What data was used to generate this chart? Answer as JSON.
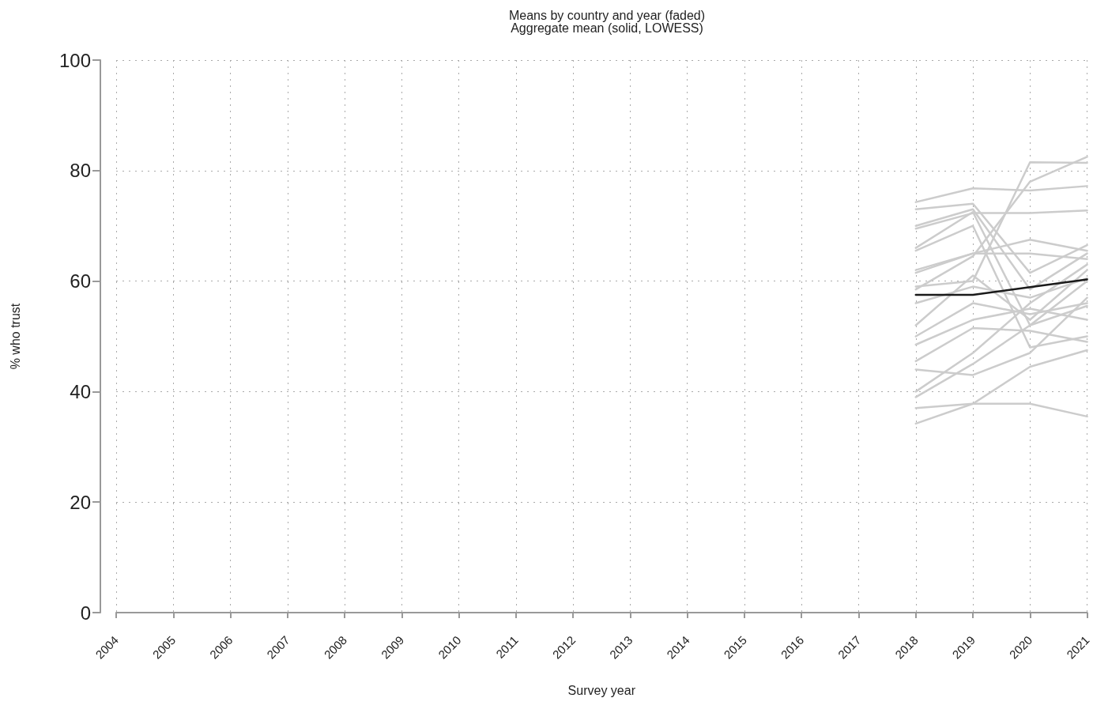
{
  "chart_data": {
    "type": "line",
    "title": "Means by country and year (faded)",
    "subtitle": "Aggregate mean (solid, LOWESS)",
    "xlabel": "Survey year",
    "ylabel": "% who trust",
    "x": [
      2018,
      2019,
      2020,
      2021
    ],
    "series": [
      {
        "color": "#cccccc",
        "values": [
          74.3,
          76.8,
          76.4,
          77.2
        ]
      },
      {
        "color": "#cccccc",
        "values": [
          73.0,
          74.0,
          61.5,
          66.5
        ]
      },
      {
        "color": "#cccccc",
        "values": [
          70.0,
          73.0,
          58.5,
          65.0
        ]
      },
      {
        "color": "#cccccc",
        "values": [
          69.5,
          72.3,
          72.3,
          72.8
        ]
      },
      {
        "color": "#cccccc",
        "values": [
          66.0,
          72.5,
          52.0,
          55.5
        ]
      },
      {
        "color": "#cccccc",
        "values": [
          65.5,
          70.0,
          48.0,
          50.0
        ]
      },
      {
        "color": "#cccccc",
        "values": [
          62.0,
          65.0,
          67.5,
          65.5
        ]
      },
      {
        "color": "#cccccc",
        "values": [
          61.5,
          65.0,
          65.0,
          64.0
        ]
      },
      {
        "color": "#cccccc",
        "values": [
          59.0,
          60.0,
          81.5,
          81.4
        ]
      },
      {
        "color": "#cccccc",
        "values": [
          58.5,
          64.5,
          78.0,
          82.5
        ]
      },
      {
        "color": "#cccccc",
        "values": [
          56.0,
          59.0,
          57.0,
          60.5
        ]
      },
      {
        "color": "#cccccc",
        "values": [
          52.0,
          61.0,
          53.0,
          62.0
        ]
      },
      {
        "color": "#cccccc",
        "values": [
          50.0,
          56.0,
          54.0,
          56.0
        ]
      },
      {
        "color": "#cccccc",
        "values": [
          48.5,
          53.0,
          55.0,
          53.0
        ]
      },
      {
        "color": "#cccccc",
        "values": [
          45.5,
          51.5,
          51.0,
          49.0
        ]
      },
      {
        "color": "#cccccc",
        "values": [
          44.0,
          43.0,
          47.0,
          57.0
        ]
      },
      {
        "color": "#cccccc",
        "values": [
          40.0,
          47.0,
          56.0,
          63.0
        ]
      },
      {
        "color": "#cccccc",
        "values": [
          39.0,
          45.0,
          52.0,
          60.0
        ]
      },
      {
        "color": "#cccccc",
        "values": [
          37.0,
          37.8,
          37.8,
          35.5
        ]
      },
      {
        "color": "#cccccc",
        "values": [
          34.2,
          37.8,
          44.5,
          47.5
        ]
      },
      {
        "color": "#1a1a1a",
        "values": [
          57.5,
          57.5,
          58.9,
          60.3
        ]
      }
    ],
    "xlim": [
      2004,
      2021
    ],
    "xticks": [
      2004,
      2005,
      2006,
      2007,
      2008,
      2009,
      2010,
      2011,
      2012,
      2013,
      2014,
      2015,
      2016,
      2017,
      2018,
      2019,
      2020,
      2021
    ],
    "ylim": [
      0,
      100
    ],
    "yticks": [
      0,
      20,
      40,
      60,
      80,
      100
    ],
    "grid": true,
    "marker": "none",
    "line_style": "solid"
  }
}
